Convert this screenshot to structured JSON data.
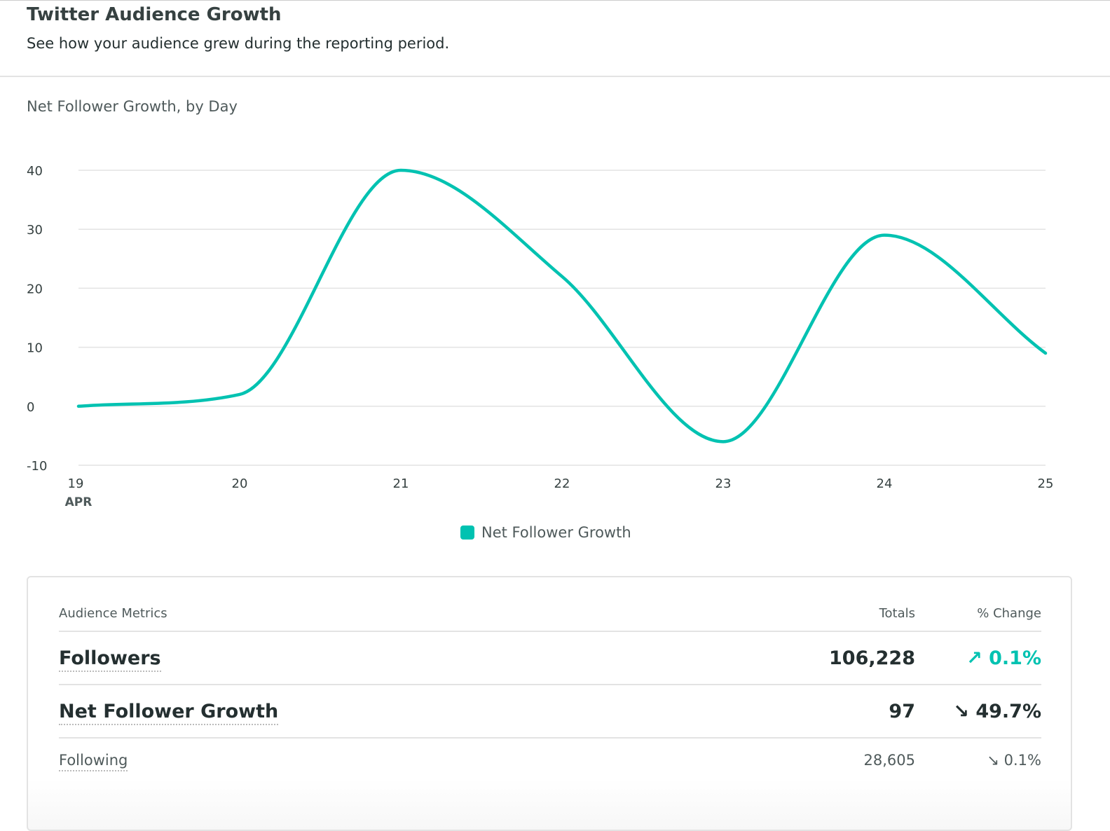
{
  "header": {
    "title": "Twitter Audience Growth",
    "subtitle": "See how your audience grew during the reporting period."
  },
  "chart_data": {
    "type": "line",
    "title": "Net Follower Growth, by Day",
    "x": [
      "19",
      "20",
      "21",
      "22",
      "23",
      "24",
      "25"
    ],
    "x_sublabel": "APR",
    "series": [
      {
        "name": "Net Follower Growth",
        "values": [
          0,
          2,
          40,
          22,
          -6,
          29,
          9
        ],
        "color": "#00c2b1"
      }
    ],
    "yticks": [
      40,
      30,
      20,
      10,
      0,
      -10
    ],
    "ylim": [
      -10,
      40
    ],
    "grid": true,
    "legend": "bottom-center",
    "curve": "smooth"
  },
  "metrics": {
    "headers": {
      "name": "Audience Metrics",
      "total": "Totals",
      "change": "% Change"
    },
    "rows": [
      {
        "name": "Followers",
        "total": "106,228",
        "arrow": "↗",
        "change": "0.1%",
        "trend": "up"
      },
      {
        "name": "Net Follower Growth",
        "total": "97",
        "arrow": "↘",
        "change": "49.7%",
        "trend": "down"
      },
      {
        "name": "Following",
        "total": "28,605",
        "arrow": "↘",
        "change": "0.1%",
        "trend": "down"
      }
    ]
  }
}
